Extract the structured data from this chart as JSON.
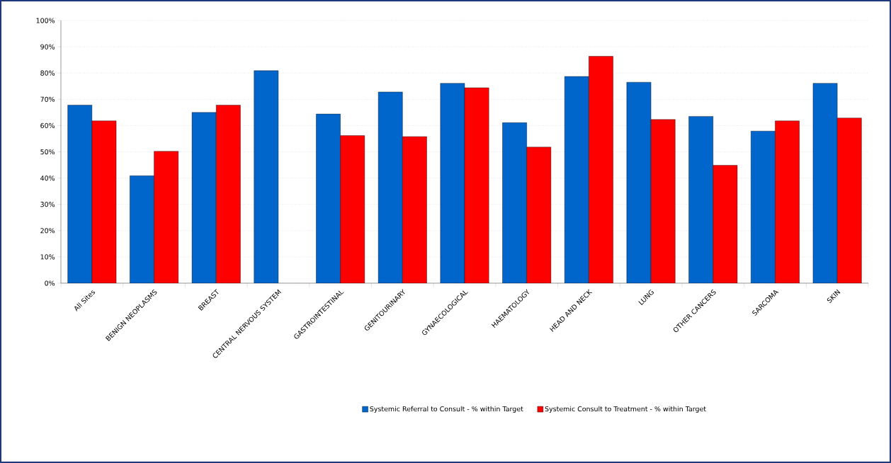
{
  "chart_data": {
    "type": "bar",
    "categories": [
      "All Sites",
      "BENIGN NEOPLASMS",
      "BREAST",
      "CENTRAL NERVOUS SYSTEM",
      "GASTROINTESTINAL",
      "GENITOURINARY",
      "GYNAECOLOGICAL",
      "HAEMATOLOGY",
      "HEAD AND NECK",
      "LUNG",
      "OTHER CANCERS",
      "SARCOMA",
      "SKIN"
    ],
    "series": [
      {
        "name": "Systemic Referral to Consult - % within Target",
        "color": "#0066cc",
        "values": [
          67.8,
          40.9,
          65.0,
          80.9,
          64.4,
          72.8,
          76.1,
          61.1,
          78.7,
          76.5,
          63.5,
          57.9,
          76.1
        ]
      },
      {
        "name": "Systemic Consult to Treatment - % within Target",
        "color": "#ff0000",
        "values": [
          61.8,
          50.2,
          67.8,
          null,
          56.2,
          55.8,
          74.4,
          51.8,
          86.4,
          62.3,
          44.9,
          61.8,
          62.9
        ]
      }
    ],
    "ylim": [
      0,
      100
    ],
    "yticks": [
      {
        "value": 0,
        "label": "0%"
      },
      {
        "value": 10,
        "label": "10%"
      },
      {
        "value": 20,
        "label": "20%"
      },
      {
        "value": 30,
        "label": "30%"
      },
      {
        "value": 40,
        "label": "40%"
      },
      {
        "value": 50,
        "label": "50%"
      },
      {
        "value": 60,
        "label": "60%"
      },
      {
        "value": 70,
        "label": "70%"
      },
      {
        "value": 80,
        "label": "80%"
      },
      {
        "value": 90,
        "label": "90%"
      },
      {
        "value": 100,
        "label": "100%"
      }
    ],
    "grid": "y",
    "legend": "bottom"
  }
}
